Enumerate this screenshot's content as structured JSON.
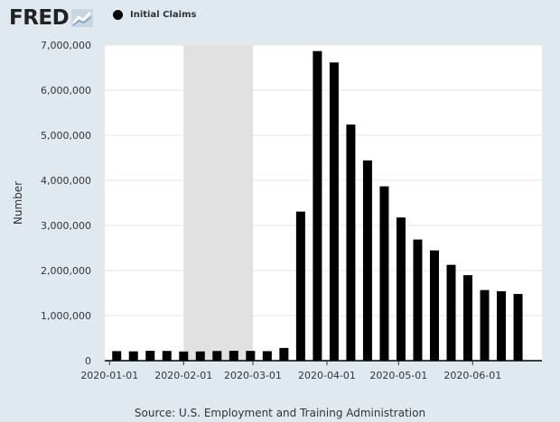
{
  "header": {
    "logo_text": "FRED",
    "logo_icon": "chart-line-icon",
    "legend_label": "Initial Claims"
  },
  "colors": {
    "background": "#e1e9f0",
    "plot_background": "#ffffff",
    "bar": "#000000",
    "recession_shade": "#e1e1e1",
    "grid": "#e6e6e6"
  },
  "chart_data": {
    "type": "bar",
    "title": "",
    "xlabel": "",
    "ylabel": "Number",
    "ylim": [
      0,
      7000000
    ],
    "yticks": [
      0,
      1000000,
      2000000,
      3000000,
      4000000,
      5000000,
      6000000,
      7000000
    ],
    "ytick_labels": [
      "0",
      "1,000,000",
      "2,000,000",
      "3,000,000",
      "4,000,000",
      "5,000,000",
      "6,000,000",
      "7,000,000"
    ],
    "xlim": [
      "2019-12-30",
      "2020-06-30"
    ],
    "xtick_labels": [
      "2020-01-01",
      "2020-02-01",
      "2020-03-01",
      "2020-04-01",
      "2020-05-01",
      "2020-06-01"
    ],
    "recession_shading": [
      "2020-02-01",
      "2020-04-01"
    ],
    "grid": true,
    "series": [
      {
        "name": "Initial Claims",
        "x": [
          "2020-01-04",
          "2020-01-11",
          "2020-01-18",
          "2020-01-25",
          "2020-02-01",
          "2020-02-08",
          "2020-02-15",
          "2020-02-22",
          "2020-02-29",
          "2020-03-07",
          "2020-03-14",
          "2020-03-21",
          "2020-03-28",
          "2020-04-04",
          "2020-04-11",
          "2020-04-18",
          "2020-04-25",
          "2020-05-02",
          "2020-05-09",
          "2020-05-16",
          "2020-05-23",
          "2020-05-30",
          "2020-06-06",
          "2020-06-13",
          "2020-06-20"
        ],
        "values": [
          212000,
          207000,
          220000,
          216000,
          204000,
          205000,
          215000,
          220000,
          217000,
          211000,
          282000,
          3307000,
          6867000,
          6615000,
          5237000,
          4442000,
          3867000,
          3176000,
          2687000,
          2446000,
          2126000,
          1897000,
          1566000,
          1540000,
          1480000
        ]
      }
    ]
  },
  "source": "Source: U.S. Employment and Training Administration"
}
